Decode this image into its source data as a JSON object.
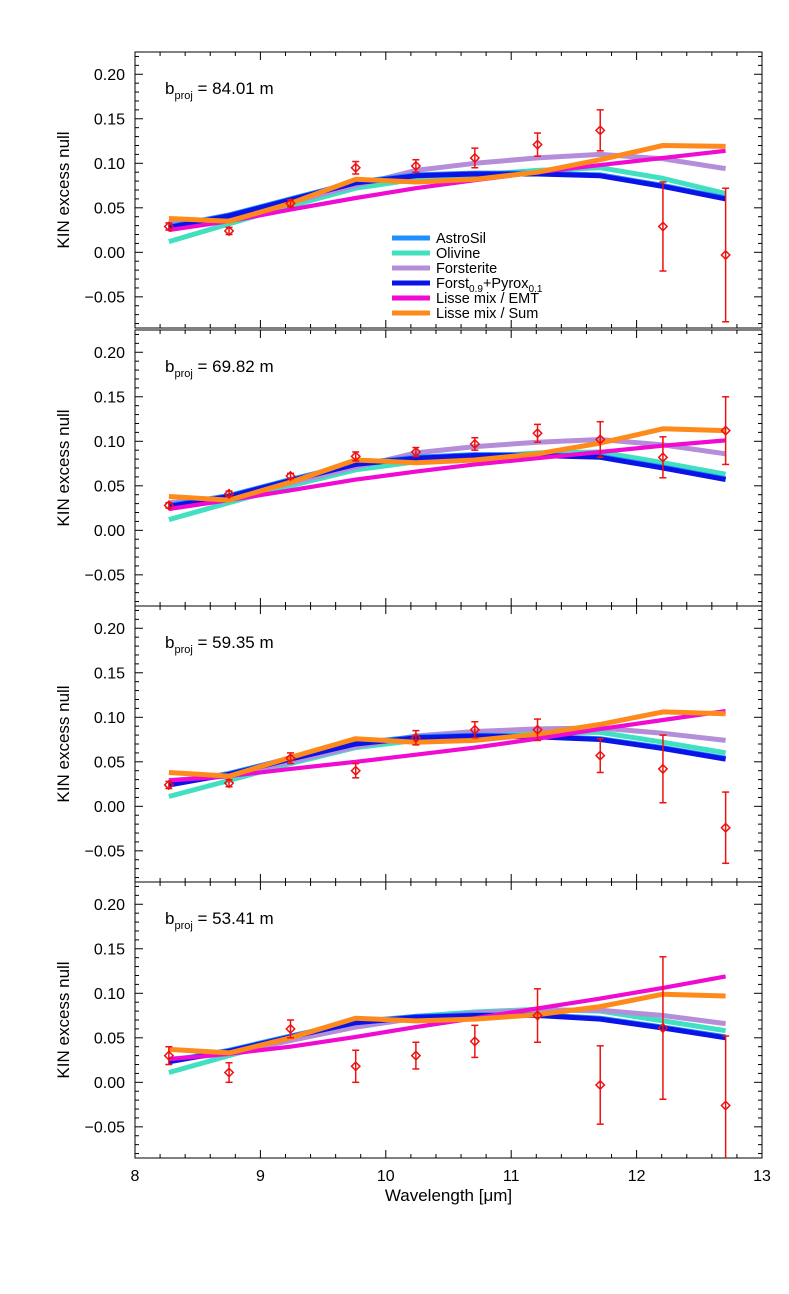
{
  "chart_data": {
    "type": "line",
    "xlabel": "Wavelength [μm]",
    "ylabel": "KIN excess null",
    "xlim": [
      8,
      13
    ],
    "ylim": [
      -0.085,
      0.225
    ],
    "x_ticks": [
      "8",
      "9",
      "10",
      "11",
      "12",
      "13"
    ],
    "y_ticks": [
      "−0.05",
      "0.00",
      "0.05",
      "0.10",
      "0.15",
      "0.20"
    ],
    "colors": {
      "AstroSil": "#1e90ff",
      "Olivine": "#40e0c0",
      "Forsterite": "#b48ed8",
      "Forst_Pyrox": "#0a14e6",
      "Lisse_EMT": "#f00ad2",
      "Lisse_Sum": "#ff8a1c",
      "data": "#ee1111"
    },
    "legend": {
      "placement": "center",
      "entries": [
        {
          "key": "AstroSil",
          "label": "AstroSil"
        },
        {
          "key": "Olivine",
          "label": "Olivine"
        },
        {
          "key": "Forsterite",
          "label": "Forsterite"
        },
        {
          "key": "Forst_Pyrox",
          "label": "Forst",
          "sub1": "0.9",
          "mid": "+Pyrox",
          "sub2": "0.1"
        },
        {
          "key": "Lisse_EMT",
          "label": "Lisse mix / EMT"
        },
        {
          "key": "Lisse_Sum",
          "label": "Lisse mix / Sum"
        }
      ]
    },
    "x": [
      8.27,
      8.75,
      9.24,
      9.76,
      10.24,
      10.71,
      11.21,
      11.71,
      12.21,
      12.71
    ],
    "panels": [
      {
        "label_prefix": "b",
        "label_sub": "proj",
        "label_value": " = 84.01 m",
        "data": {
          "y": [
            0.029,
            0.024,
            0.055,
            0.095,
            0.097,
            0.106,
            0.121,
            0.137,
            0.029,
            -0.003
          ],
          "err": [
            0.004,
            0.004,
            0.004,
            0.007,
            0.007,
            0.011,
            0.013,
            0.023,
            0.05,
            0.075
          ]
        },
        "series": [
          {
            "key": "Olivine",
            "values": [
              0.012,
              0.032,
              0.052,
              0.072,
              0.082,
              0.087,
              0.092,
              0.095,
              0.083,
              0.066
            ]
          },
          {
            "key": "Forsterite",
            "values": [
              0.032,
              0.038,
              0.056,
              0.075,
              0.092,
              0.1,
              0.106,
              0.11,
              0.105,
              0.094
            ]
          },
          {
            "key": "AstroSil",
            "values": [
              0.029,
              0.042,
              0.06,
              0.079,
              0.087,
              0.089,
              0.089,
              0.087,
              0.075,
              0.061
            ]
          },
          {
            "key": "Forst_Pyrox",
            "values": [
              0.028,
              0.041,
              0.059,
              0.078,
              0.086,
              0.088,
              0.088,
              0.086,
              0.074,
              0.06
            ]
          },
          {
            "key": "Lisse_EMT",
            "values": [
              0.025,
              0.035,
              0.048,
              0.061,
              0.072,
              0.081,
              0.09,
              0.098,
              0.106,
              0.114
            ]
          },
          {
            "key": "Lisse_Sum",
            "values": [
              0.038,
              0.035,
              0.055,
              0.082,
              0.079,
              0.082,
              0.09,
              0.104,
              0.12,
              0.119
            ]
          }
        ]
      },
      {
        "label_prefix": "b",
        "label_sub": "proj",
        "label_value": " = 69.82 m",
        "data": {
          "y": [
            0.028,
            0.041,
            0.061,
            0.083,
            0.088,
            0.097,
            0.109,
            0.102,
            0.082,
            0.112
          ],
          "err": [
            0.003,
            0.003,
            0.003,
            0.005,
            0.005,
            0.007,
            0.01,
            0.02,
            0.023,
            0.038
          ]
        },
        "series": [
          {
            "key": "Olivine",
            "values": [
              0.012,
              0.031,
              0.05,
              0.068,
              0.077,
              0.082,
              0.087,
              0.088,
              0.076,
              0.063
            ]
          },
          {
            "key": "Forsterite",
            "values": [
              0.031,
              0.036,
              0.053,
              0.071,
              0.087,
              0.094,
              0.099,
              0.102,
              0.096,
              0.086
            ]
          },
          {
            "key": "AstroSil",
            "values": [
              0.028,
              0.039,
              0.057,
              0.075,
              0.082,
              0.085,
              0.085,
              0.083,
              0.071,
              0.058
            ]
          },
          {
            "key": "Forst_Pyrox",
            "values": [
              0.027,
              0.038,
              0.056,
              0.074,
              0.081,
              0.084,
              0.084,
              0.082,
              0.07,
              0.057
            ]
          },
          {
            "key": "Lisse_EMT",
            "values": [
              0.024,
              0.034,
              0.045,
              0.057,
              0.066,
              0.074,
              0.081,
              0.088,
              0.095,
              0.101
            ]
          },
          {
            "key": "Lisse_Sum",
            "values": [
              0.038,
              0.034,
              0.054,
              0.079,
              0.076,
              0.079,
              0.086,
              0.098,
              0.114,
              0.112
            ]
          }
        ]
      },
      {
        "label_prefix": "b",
        "label_sub": "proj",
        "label_value": " = 59.35 m",
        "data": {
          "y": [
            0.024,
            0.026,
            0.054,
            0.04,
            0.077,
            0.086,
            0.086,
            0.057,
            0.042,
            -0.024
          ],
          "err": [
            0.004,
            0.004,
            0.006,
            0.008,
            0.008,
            0.009,
            0.012,
            0.019,
            0.038,
            0.04
          ]
        },
        "series": [
          {
            "key": "Olivine",
            "values": [
              0.011,
              0.029,
              0.048,
              0.066,
              0.074,
              0.079,
              0.083,
              0.083,
              0.072,
              0.06
            ]
          },
          {
            "key": "Forsterite",
            "values": [
              0.029,
              0.034,
              0.05,
              0.067,
              0.079,
              0.084,
              0.087,
              0.088,
              0.082,
              0.074
            ]
          },
          {
            "key": "AstroSil",
            "values": [
              0.025,
              0.037,
              0.054,
              0.071,
              0.078,
              0.08,
              0.079,
              0.076,
              0.066,
              0.054
            ]
          },
          {
            "key": "Forst_Pyrox",
            "values": [
              0.024,
              0.036,
              0.053,
              0.07,
              0.077,
              0.079,
              0.078,
              0.075,
              0.065,
              0.053
            ]
          },
          {
            "key": "Lisse_EMT",
            "values": [
              0.029,
              0.034,
              0.042,
              0.05,
              0.058,
              0.066,
              0.076,
              0.087,
              0.097,
              0.107
            ]
          },
          {
            "key": "Lisse_Sum",
            "values": [
              0.038,
              0.034,
              0.055,
              0.076,
              0.072,
              0.074,
              0.081,
              0.092,
              0.106,
              0.104
            ]
          }
        ]
      },
      {
        "label_prefix": "b",
        "label_sub": "proj",
        "label_value": " = 53.41 m",
        "data": {
          "y": [
            0.03,
            0.011,
            0.06,
            0.018,
            0.03,
            0.046,
            0.075,
            -0.003,
            0.061,
            -0.026
          ],
          "err": [
            0.01,
            0.011,
            0.01,
            0.018,
            0.015,
            0.018,
            0.03,
            0.044,
            0.08,
            0.078
          ]
        },
        "series": [
          {
            "key": "Olivine",
            "values": [
              0.011,
              0.03,
              0.049,
              0.066,
              0.074,
              0.079,
              0.082,
              0.08,
              0.069,
              0.058
            ]
          },
          {
            "key": "Forsterite",
            "values": [
              0.026,
              0.032,
              0.047,
              0.062,
              0.072,
              0.078,
              0.081,
              0.081,
              0.075,
              0.066
            ]
          },
          {
            "key": "AstroSil",
            "values": [
              0.024,
              0.036,
              0.052,
              0.068,
              0.074,
              0.076,
              0.076,
              0.072,
              0.062,
              0.051
            ]
          },
          {
            "key": "Forst_Pyrox",
            "values": [
              0.023,
              0.035,
              0.051,
              0.067,
              0.073,
              0.075,
              0.075,
              0.071,
              0.061,
              0.05
            ]
          },
          {
            "key": "Lisse_EMT",
            "values": [
              0.026,
              0.032,
              0.04,
              0.051,
              0.062,
              0.072,
              0.083,
              0.094,
              0.106,
              0.119
            ]
          },
          {
            "key": "Lisse_Sum",
            "values": [
              0.037,
              0.033,
              0.05,
              0.072,
              0.069,
              0.071,
              0.076,
              0.085,
              0.099,
              0.097
            ]
          }
        ]
      }
    ]
  }
}
